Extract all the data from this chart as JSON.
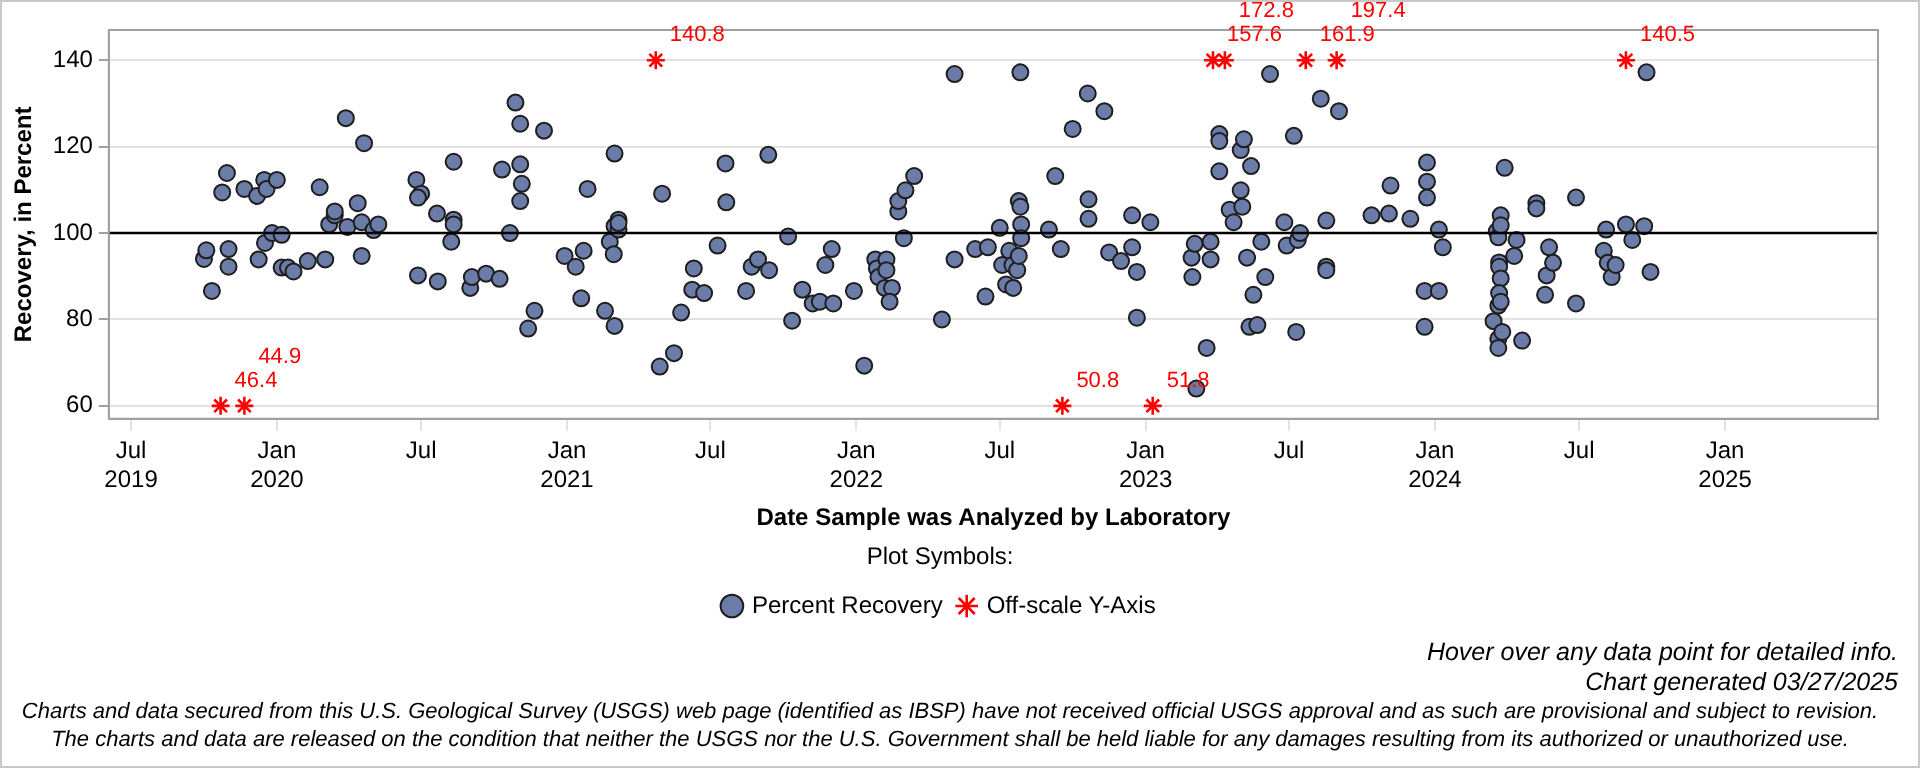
{
  "chart_data": {
    "type": "scatter",
    "xlabel": "Date Sample was Analyzed by Laboratory",
    "ylabel": "Recovery, in Percent",
    "legend": "bottom",
    "legend_title": "Plot Symbols:",
    "grid": "y",
    "xlim": [
      "2019-06-03",
      "2025-07-13"
    ],
    "xticks": [
      {
        "value": "2019-07-01",
        "label": "Jul 2019"
      },
      {
        "value": "2020-01-01",
        "label": "Jan 2020"
      },
      {
        "value": "2020-07-01",
        "label": "Jul"
      },
      {
        "value": "2021-01-01",
        "label": "Jan 2021"
      },
      {
        "value": "2021-07-01",
        "label": "Jul"
      },
      {
        "value": "2022-01-01",
        "label": "Jan 2022"
      },
      {
        "value": "2022-07-01",
        "label": "Jul"
      },
      {
        "value": "2023-01-01",
        "label": "Jan 2023"
      },
      {
        "value": "2023-07-01",
        "label": "Jul"
      },
      {
        "value": "2024-01-01",
        "label": "Jan 2024"
      },
      {
        "value": "2024-07-01",
        "label": "Jul"
      },
      {
        "value": "2025-01-01",
        "label": "Jan 2025"
      }
    ],
    "ylim": [
      57,
      147
    ],
    "yticks": [
      60,
      80,
      100,
      120,
      140
    ],
    "ref_lines": [
      {
        "axis": "y",
        "value": 100,
        "color": "#000000"
      }
    ],
    "series": [
      {
        "name": "Percent Recovery",
        "color": "#6b7ca8",
        "marker": "circle",
        "x": [
          "2019-10-01",
          "2019-10-04",
          "2019-10-11",
          "2019-10-24",
          "2019-10-30",
          "2019-11-01",
          "2019-11-01",
          "2019-11-21",
          "2019-12-07",
          "2019-12-09",
          "2019-12-16",
          "2019-12-19",
          "2019-12-17",
          "2019-12-26",
          "2020-01-01",
          "2020-01-07",
          "2020-01-07",
          "2020-01-15",
          "2020-01-22",
          "2020-02-09",
          "2020-02-24",
          "2020-03-02",
          "2020-03-07",
          "2020-03-14",
          "2020-03-14",
          "2020-03-28",
          "2020-03-30",
          "2020-04-12",
          "2020-04-17",
          "2020-04-17",
          "2020-04-20",
          "2020-05-02",
          "2020-05-08",
          "2020-06-25",
          "2020-07-01",
          "2020-06-27",
          "2020-06-27",
          "2020-07-21",
          "2020-07-22",
          "2020-08-08",
          "2020-08-11",
          "2020-08-11",
          "2020-08-11",
          "2020-09-01",
          "2020-09-03",
          "2020-09-21",
          "2020-10-08",
          "2020-10-11",
          "2020-10-21",
          "2020-10-28",
          "2020-11-03",
          "2020-11-03",
          "2020-11-05",
          "2020-11-03",
          "2020-11-13",
          "2020-11-21",
          "2020-12-03",
          "2020-12-29",
          "2021-01-12",
          "2021-01-19",
          "2021-01-22",
          "2021-01-27",
          "2021-02-18",
          "2021-02-24",
          "2021-03-01",
          "2021-03-02",
          "2021-03-02",
          "2021-03-02",
          "2021-03-07",
          "2021-03-07",
          "2021-03-07",
          "2021-05-01",
          "2021-04-28",
          "2021-05-16",
          "2021-05-25",
          "2021-06-10",
          "2021-06-08",
          "2021-06-23",
          "2021-07-10",
          "2021-07-20",
          "2021-07-21",
          "2021-08-15",
          "2021-08-22",
          "2021-08-30",
          "2021-09-12",
          "2021-09-13",
          "2021-10-07",
          "2021-10-12",
          "2021-10-25",
          "2021-11-07",
          "2021-11-16",
          "2021-11-23",
          "2021-12-01",
          "2021-12-03",
          "2021-12-29",
          "2022-01-11",
          "2022-01-25",
          "2022-01-27",
          "2022-01-29",
          "2022-02-08",
          "2022-02-08",
          "2022-02-06",
          "2022-02-15",
          "2022-02-12",
          "2022-02-23",
          "2022-02-23",
          "2022-03-02",
          "2022-03-04",
          "2022-03-15",
          "2022-04-19",
          "2022-05-05",
          "2022-05-05",
          "2022-05-31",
          "2022-06-13",
          "2022-06-16",
          "2022-07-01",
          "2022-07-04",
          "2022-07-09",
          "2022-07-13",
          "2022-07-17",
          "2022-07-18",
          "2022-07-23",
          "2022-07-25",
          "2022-07-25",
          "2022-07-27",
          "2022-07-28",
          "2022-07-28",
          "2022-07-27",
          "2022-09-01",
          "2022-09-09",
          "2022-09-16",
          "2022-10-01",
          "2022-10-20",
          "2022-10-21",
          "2022-10-21",
          "2022-11-10",
          "2022-11-16",
          "2022-12-01",
          "2022-12-15",
          "2022-12-15",
          "2022-12-21",
          "2022-12-21",
          "2023-01-07",
          "2023-02-28",
          "2023-03-01",
          "2023-03-04",
          "2023-03-06",
          "2023-03-19",
          "2023-03-24",
          "2023-03-24",
          "2023-04-04",
          "2023-04-04",
          "2023-04-04",
          "2023-04-17",
          "2023-04-22",
          "2023-05-01",
          "2023-05-05",
          "2023-05-01",
          "2023-05-03",
          "2023-05-09",
          "2023-05-14",
          "2023-05-17",
          "2023-05-12",
          "2023-05-22",
          "2023-05-27",
          "2023-06-01",
          "2023-06-07",
          "2023-06-25",
          "2023-06-28",
          "2023-07-07",
          "2023-07-10",
          "2023-07-12",
          "2023-07-15",
          "2023-08-10",
          "2023-08-17",
          "2023-08-17",
          "2023-08-17",
          "2023-09-02",
          "2023-10-13",
          "2023-11-04",
          "2023-11-06",
          "2023-12-01",
          "2023-12-19",
          "2023-12-19",
          "2023-12-22",
          "2023-12-22",
          "2023-12-22",
          "2024-01-06",
          "2024-01-06",
          "2024-01-11",
          "2024-03-15",
          "2024-03-19",
          "2024-03-21",
          "2024-03-22",
          "2024-03-22",
          "2024-03-24",
          "2024-03-24",
          "2024-03-24",
          "2024-03-22",
          "2024-03-21",
          "2024-03-24",
          "2024-03-21",
          "2024-03-21",
          "2024-03-26",
          "2024-03-29",
          "2024-04-13",
          "2024-04-10",
          "2024-04-20",
          "2024-05-08",
          "2024-05-08",
          "2024-05-19",
          "2024-05-21",
          "2024-05-24",
          "2024-05-29",
          "2024-06-27",
          "2024-06-27",
          "2024-08-01",
          "2024-08-04",
          "2024-08-06",
          "2024-08-11",
          "2024-08-16",
          "2024-08-29",
          "2024-09-06",
          "2024-09-21",
          "2024-09-24",
          "2024-09-29"
        ],
        "values": [
          94,
          96,
          86.6,
          109.4,
          113.9,
          96.3,
          92.2,
          110.2,
          108.6,
          93.9,
          112.3,
          110.2,
          97.7,
          100,
          112.3,
          99.6,
          92,
          92,
          91.1,
          93.5,
          110.6,
          93.9,
          102,
          104.1,
          105,
          126.6,
          101.4,
          106.9,
          94.7,
          102.5,
          120.8,
          100.7,
          102,
          112.3,
          109.1,
          108.2,
          90.2,
          104.5,
          88.8,
          98,
          103.1,
          102,
          116.5,
          87.3,
          89.8,
          90.6,
          89.4,
          114.7,
          100,
          130.2,
          125.3,
          115.9,
          111.4,
          107.4,
          77.9,
          82,
          123.7,
          94.7,
          92.2,
          84.9,
          95.9,
          110.2,
          82,
          98,
          95.1,
          118.4,
          78.5,
          101.6,
          103.1,
          100.8,
          102.3,
          109.1,
          69.1,
          72.2,
          81.6,
          91.8,
          86.9,
          86.1,
          97.1,
          116.1,
          107.1,
          86.6,
          92.2,
          93.9,
          118.1,
          91.4,
          99.2,
          79.7,
          86.9,
          83.7,
          84.1,
          92.6,
          96.3,
          83.7,
          86.6,
          69.3,
          93.9,
          91.8,
          89.8,
          93.9,
          91.4,
          87.3,
          87.3,
          84.1,
          105,
          107.4,
          98.8,
          109.9,
          113.2,
          80,
          136.8,
          93.9,
          96.3,
          85.3,
          96.7,
          101.2,
          92.6,
          88.1,
          95.9,
          92.6,
          87.3,
          91.4,
          94.7,
          107.4,
          106.1,
          102,
          98.8,
          137.2,
          100.8,
          113.2,
          96.3,
          124.1,
          132.3,
          107.8,
          103.3,
          128.2,
          95.5,
          93.5,
          96.7,
          104.1,
          91,
          80.4,
          102.5,
          94.3,
          89.8,
          97.5,
          64,
          73.4,
          98,
          93.9,
          122.9,
          121.3,
          114.3,
          105.4,
          102.5,
          119.2,
          121.7,
          109.9,
          106.1,
          94.3,
          115.5,
          85.7,
          78.3,
          78.7,
          98,
          89.8,
          136.8,
          102.5,
          97.1,
          122.5,
          77.1,
          98.4,
          100,
          131.1,
          102.9,
          92.2,
          91.4,
          128.2,
          104.1,
          104.5,
          111,
          103.3,
          86.6,
          78.3,
          116.3,
          111.9,
          108.2,
          100.8,
          86.6,
          96.7,
          79.6,
          100.4,
          99,
          93.2,
          92.2,
          104.1,
          101.8,
          89.5,
          86.1,
          83.2,
          84.1,
          75.5,
          73.4,
          77.1,
          115.1,
          98.4,
          94.7,
          75.1,
          106.9,
          105.7,
          85.7,
          90.2,
          96.7,
          93.1,
          108.2,
          83.7,
          95.9,
          100.8,
          93.1,
          89.8,
          92.6,
          102,
          98.4,
          101.6,
          137.2,
          91
        ]
      },
      {
        "name": "Off-scale Y-Axis",
        "color": "#ff0000",
        "marker": "cross",
        "x": [
          "2019-10-22",
          "2019-11-21",
          "2021-04-23",
          "2022-09-18",
          "2023-01-10",
          "2023-03-27",
          "2023-04-11",
          "2023-07-22",
          "2023-08-30",
          "2024-08-29"
        ],
        "values": [
          60,
          60,
          140,
          60,
          60,
          140,
          140,
          140,
          140,
          140
        ]
      }
    ],
    "annotations": [
      {
        "text": "46.4",
        "x": "2019-10-22",
        "y": 60
      },
      {
        "text": "44.9",
        "x": "2019-11-21",
        "y": 60
      },
      {
        "text": "140.8",
        "x": "2021-04-23",
        "y": 140
      },
      {
        "text": "50.8",
        "x": "2022-09-18",
        "y": 60
      },
      {
        "text": "51.8",
        "x": "2023-01-10",
        "y": 60
      },
      {
        "text": "157.6",
        "x": "2023-03-27",
        "y": 140
      },
      {
        "text": "172.8",
        "x": "2023-04-11",
        "y": 140
      },
      {
        "text": "161.9",
        "x": "2023-07-22",
        "y": 140
      },
      {
        "text": "197.4",
        "x": "2023-08-30",
        "y": 140
      },
      {
        "text": "140.5",
        "x": "2024-08-29",
        "y": 140
      },
      "Hover over any data point for detailed info.",
      "Chart generated 03/27/2025",
      "Charts and data secured from this U.S. Geological Survey (USGS) web page (identified as IBSP) have not received official USGS approval and as such are provisional and subject to revision.",
      "The charts and data are released on the condition that neither the USGS nor the U.S. Government shall be held liable for any damages resulting from its authorized or unauthorized use."
    ]
  }
}
